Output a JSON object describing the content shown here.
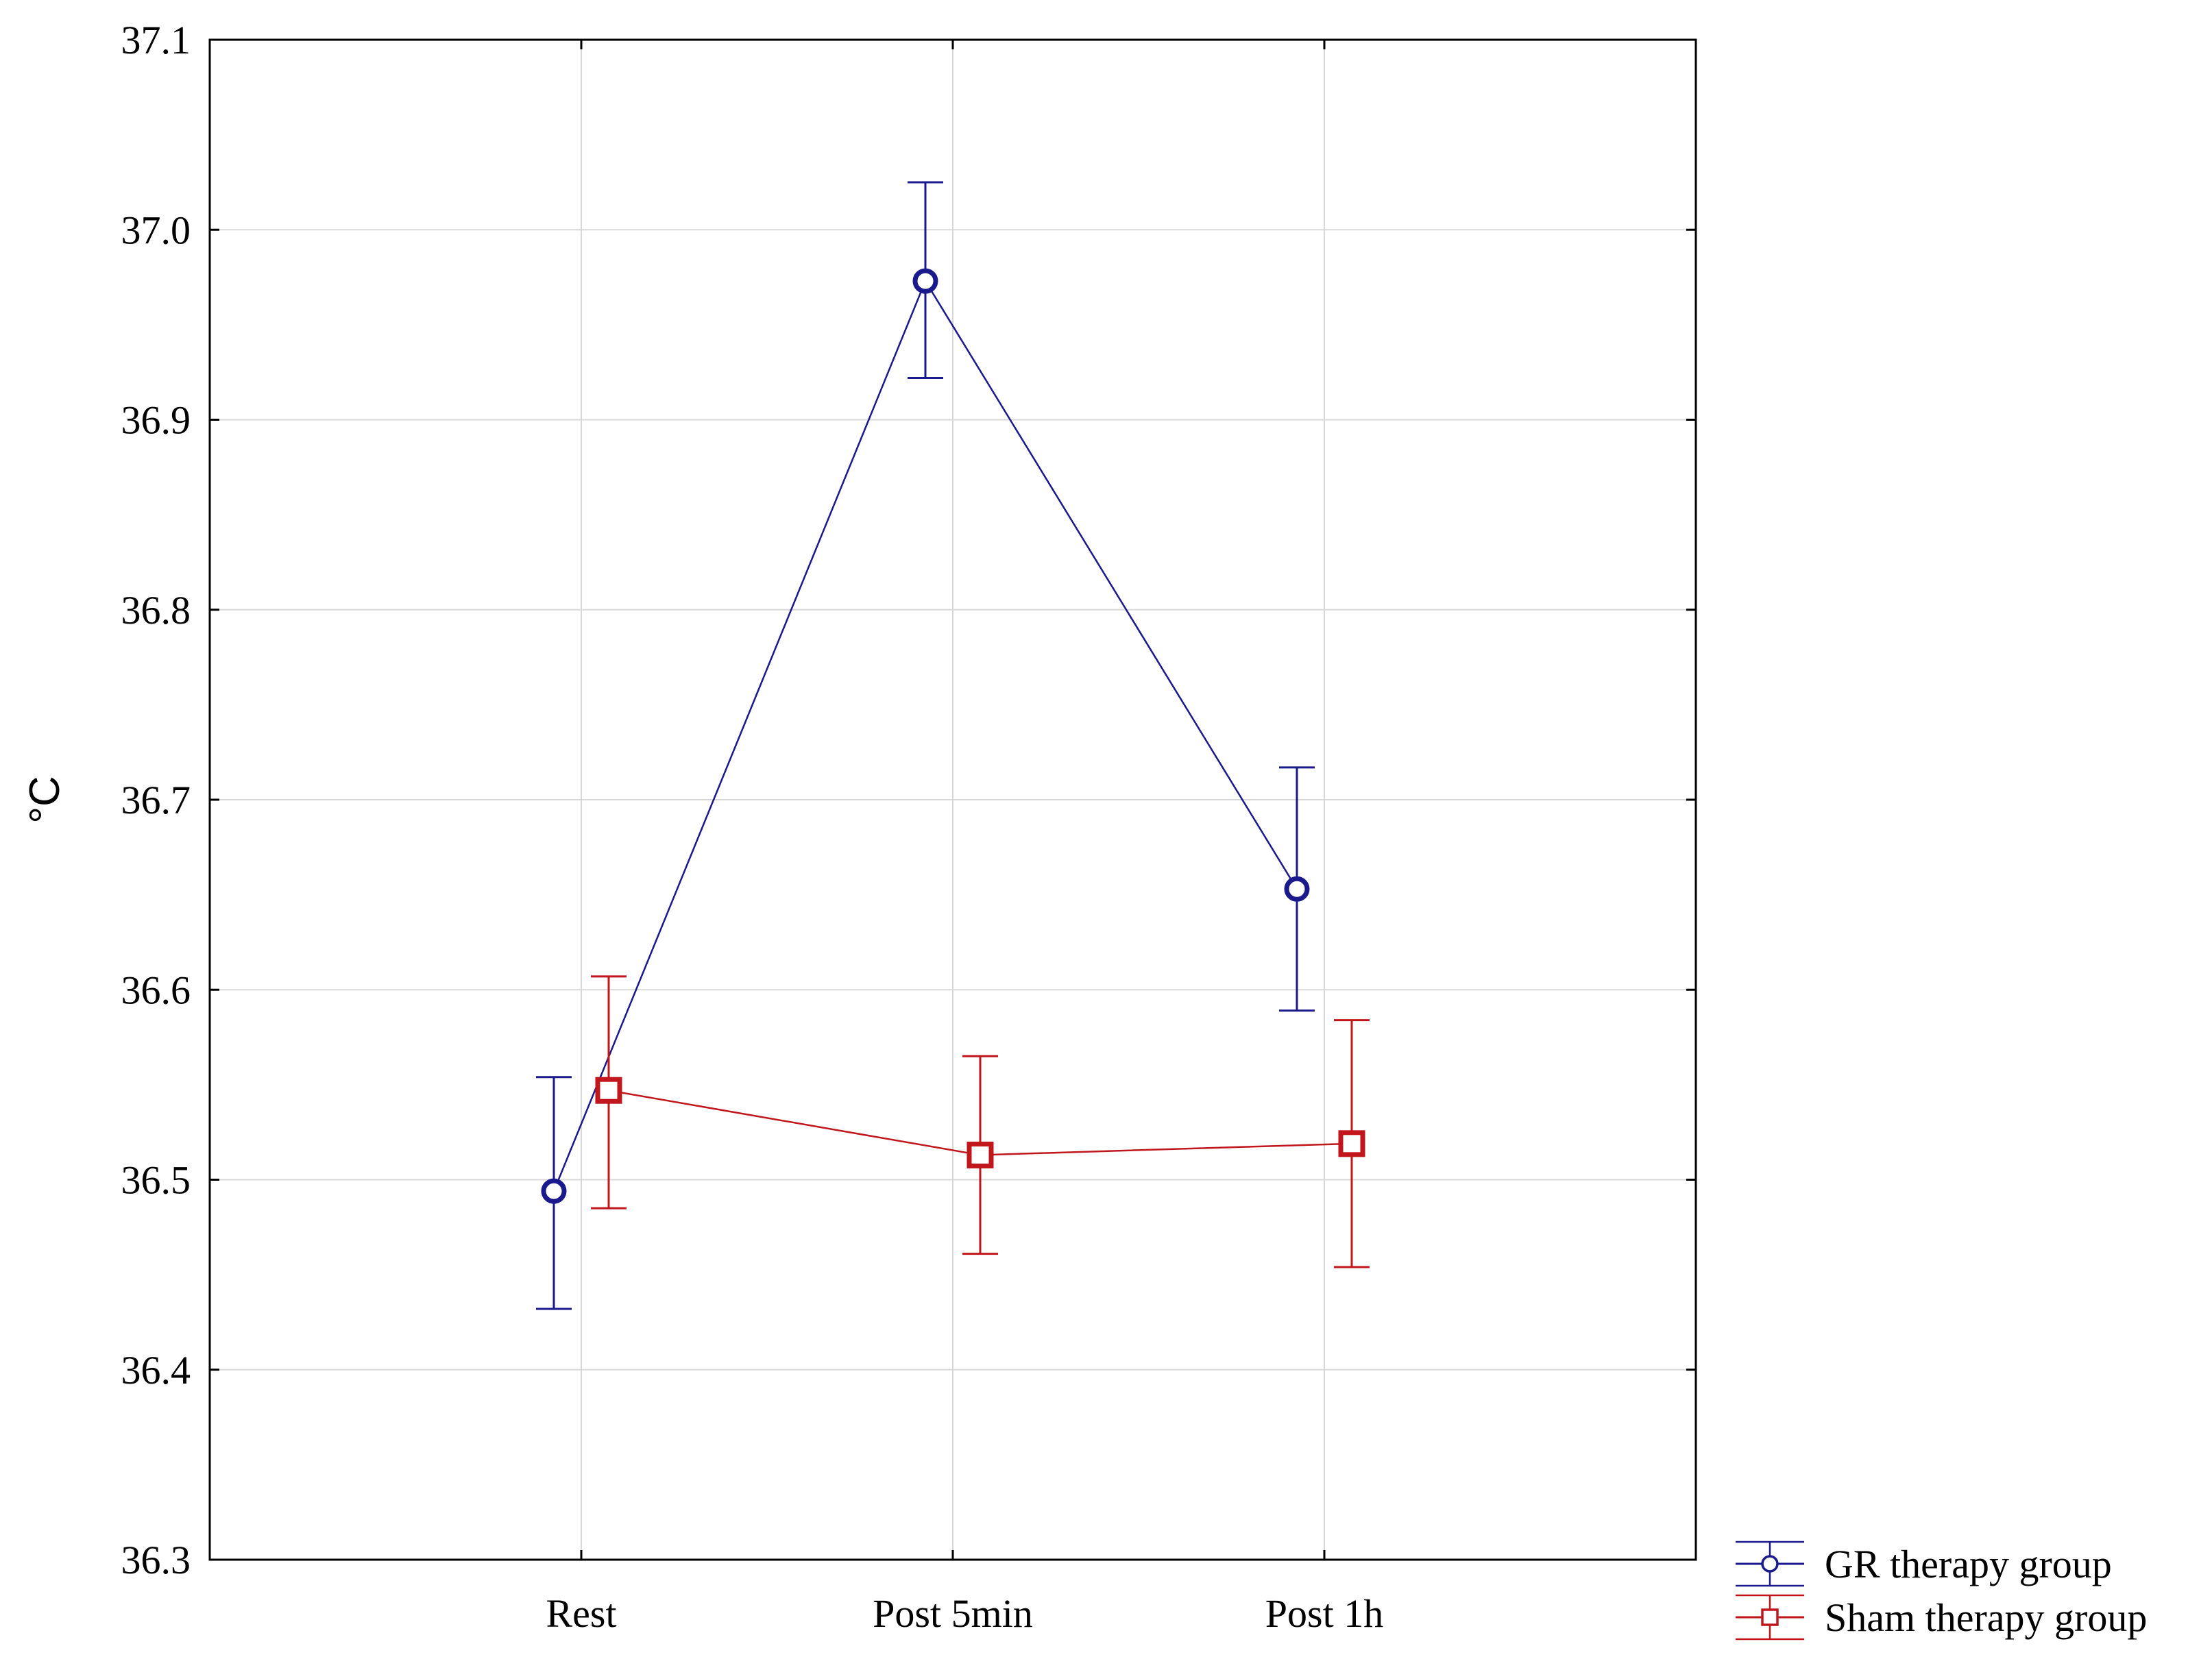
{
  "chart_data": {
    "type": "line",
    "title": "",
    "xlabel": "",
    "ylabel": "°C",
    "categories": [
      "Rest",
      "Post 5min",
      "Post 1h"
    ],
    "ylim": [
      36.3,
      37.1
    ],
    "yticks": [
      "36.3",
      "36.4",
      "36.5",
      "36.6",
      "36.7",
      "36.8",
      "36.9",
      "37.0",
      "37.1"
    ],
    "grid": true,
    "legend_position": "bottom-right, outside plot",
    "series": [
      {
        "name": "GR therapy group",
        "color": "#1a1a8c",
        "marker": "circle",
        "values": [
          36.494,
          36.973,
          36.653
        ],
        "error_low": [
          36.432,
          36.922,
          36.589
        ],
        "error_high": [
          36.554,
          37.025,
          36.717
        ]
      },
      {
        "name": "Sham therapy group",
        "color": "#c0161c",
        "marker": "square",
        "values": [
          36.547,
          36.513,
          36.519
        ],
        "error_low": [
          36.485,
          36.461,
          36.454
        ],
        "error_high": [
          36.607,
          36.565,
          36.584
        ]
      }
    ]
  }
}
